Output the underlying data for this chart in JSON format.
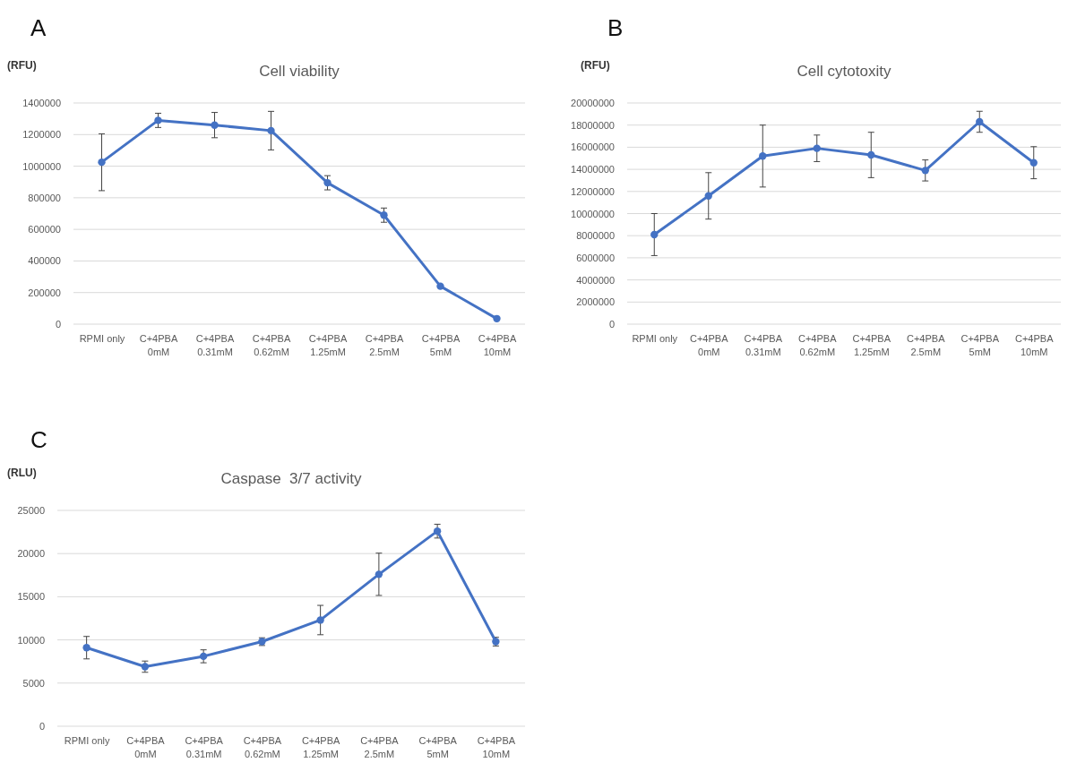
{
  "chart_data": [
    {
      "type": "line",
      "title": "Cell viability",
      "ylabel": "(RFU)",
      "annotations": [
        "A"
      ],
      "categories": [
        "RPMI only",
        "C+4PBA\n0mM",
        "C+4PBA\n0.31mM",
        "C+4PBA\n0.62mM",
        "C+4PBA\n1.25mM",
        "C+4PBA\n2.5mM",
        "C+4PBA\n5mM",
        "C+4PBA\n10mM"
      ],
      "series": [
        {
          "color": "#4472c4",
          "values": [
            1025000,
            1290000,
            1260000,
            1225000,
            895000,
            690000,
            240000,
            35000
          ],
          "errors": [
            180000,
            45000,
            80000,
            122000,
            45000,
            45000,
            null,
            null
          ]
        }
      ],
      "ylim": [
        0,
        1400000
      ],
      "yticks": [
        0,
        200000,
        400000,
        600000,
        800000,
        1000000,
        1200000,
        1400000
      ],
      "grid": "y",
      "marker": "circle",
      "line_style": "solid"
    },
    {
      "type": "line",
      "title": "Cell cytotoxity",
      "ylabel": "(RFU)",
      "annotations": [
        "B"
      ],
      "categories": [
        "RPMI only",
        "C+4PBA\n0mM",
        "C+4PBA\n0.31mM",
        "C+4PBA\n0.62mM",
        "C+4PBA\n1.25mM",
        "C+4PBA\n2.5mM",
        "C+4PBA\n5mM",
        "C+4PBA\n10mM"
      ],
      "series": [
        {
          "color": "#4472c4",
          "values": [
            8100000,
            11600000,
            15200000,
            15900000,
            15300000,
            13900000,
            18300000,
            14600000
          ],
          "errors": [
            1900000,
            2100000,
            2800000,
            1200000,
            2050000,
            950000,
            950000,
            1450000
          ]
        }
      ],
      "ylim": [
        0,
        20000000
      ],
      "yticks": [
        0,
        2000000,
        4000000,
        6000000,
        8000000,
        10000000,
        12000000,
        14000000,
        16000000,
        18000000,
        20000000
      ],
      "grid": "y",
      "marker": "circle",
      "line_style": "solid"
    },
    {
      "type": "line",
      "title": "Caspase  3/7 activity",
      "ylabel": "(RLU)",
      "annotations": [
        "C"
      ],
      "categories": [
        "RPMI only",
        "C+4PBA\n0mM",
        "C+4PBA\n0.31mM",
        "C+4PBA\n0.62mM",
        "C+4PBA\n1.25mM",
        "C+4PBA\n2.5mM",
        "C+4PBA\n5mM",
        "C+4PBA\n10mM"
      ],
      "series": [
        {
          "color": "#4472c4",
          "values": [
            9100,
            6900,
            8100,
            9800,
            12300,
            17600,
            22600,
            9800
          ],
          "errors": [
            1300,
            650,
            750,
            450,
            1700,
            2450,
            800,
            500
          ]
        }
      ],
      "ylim": [
        0,
        25000
      ],
      "yticks": [
        0,
        5000,
        10000,
        15000,
        20000,
        25000
      ],
      "grid": "y",
      "marker": "circle",
      "line_style": "solid"
    }
  ]
}
